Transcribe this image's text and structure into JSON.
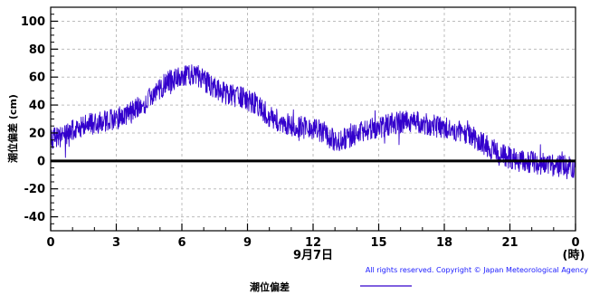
{
  "chart_data": {
    "type": "line",
    "ylabel": "潮位偏差 (cm)",
    "x_unit_label": "(時)",
    "x_date_label": "9月7日",
    "xlim": [
      0,
      24
    ],
    "ylim": [
      -50,
      110
    ],
    "x_ticks": [
      "0",
      "3",
      "6",
      "9",
      "12",
      "15",
      "18",
      "21",
      "0"
    ],
    "y_ticks": [
      "-40",
      "-20",
      "0",
      "20",
      "40",
      "60",
      "80",
      "100"
    ],
    "grid": true,
    "legend_position": "bottom-center",
    "copyright": "All rights reserved. Copyright © Japan Meteorological Agency",
    "series": [
      {
        "name": "潮位偏差",
        "color": "#3300cc",
        "band": 8,
        "x": [
          0,
          0.5,
          1,
          1.5,
          2,
          2.5,
          3,
          3.5,
          4,
          4.5,
          5,
          5.5,
          6,
          6.5,
          7,
          7.5,
          8,
          8.5,
          9,
          9.5,
          10,
          10.5,
          11,
          11.5,
          12,
          12.5,
          13,
          13.5,
          14,
          14.5,
          15,
          15.5,
          16,
          16.5,
          17,
          17.5,
          18,
          18.5,
          19,
          19.5,
          20,
          20.5,
          21,
          21.5,
          22,
          22.5,
          23,
          23.5,
          24
        ],
        "y": [
          15,
          18,
          22,
          25,
          27,
          28,
          30,
          33,
          38,
          44,
          52,
          58,
          60,
          62,
          58,
          52,
          48,
          46,
          44,
          40,
          32,
          28,
          25,
          24,
          23,
          21,
          14,
          16,
          20,
          22,
          24,
          26,
          28,
          28,
          27,
          25,
          24,
          22,
          20,
          15,
          10,
          6,
          2,
          0,
          -1,
          -2,
          -3,
          -4,
          -4
        ]
      }
    ]
  }
}
